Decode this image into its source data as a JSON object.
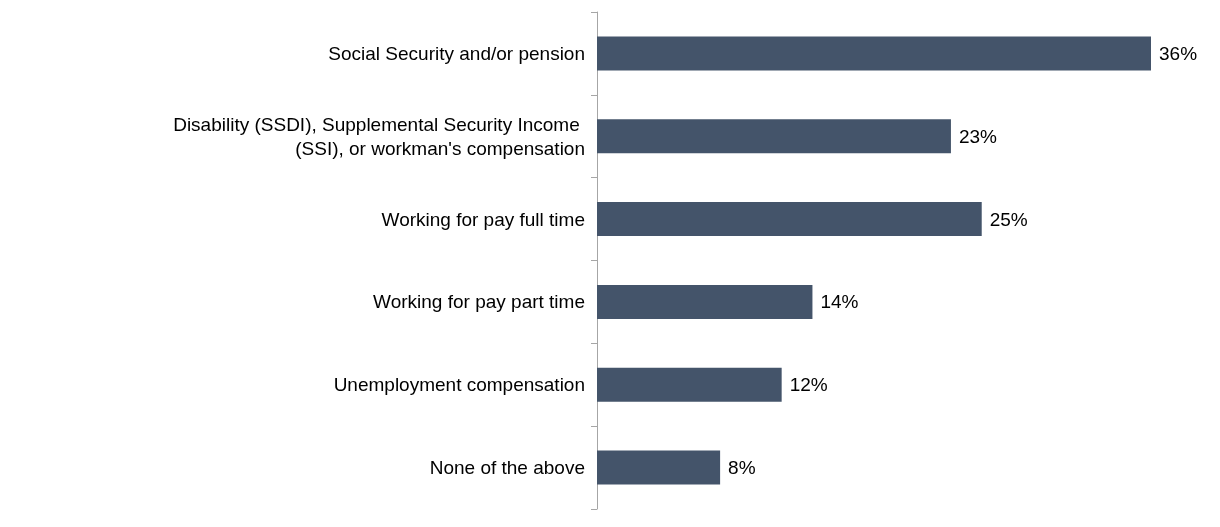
{
  "chart_data": {
    "type": "bar",
    "orientation": "horizontal",
    "categories": [
      "Social Security and/or pension",
      "Disability (SSDI), Supplemental Security Income (SSI), or workman's compensation",
      "Working for pay full time",
      "Working for pay part time",
      "Unemployment compensation",
      "None of the above"
    ],
    "values": [
      36,
      23,
      25,
      14,
      12,
      8
    ],
    "value_labels": [
      "36%",
      "23%",
      "25%",
      "14%",
      "12%",
      "8%"
    ],
    "color": "#44546a"
  }
}
